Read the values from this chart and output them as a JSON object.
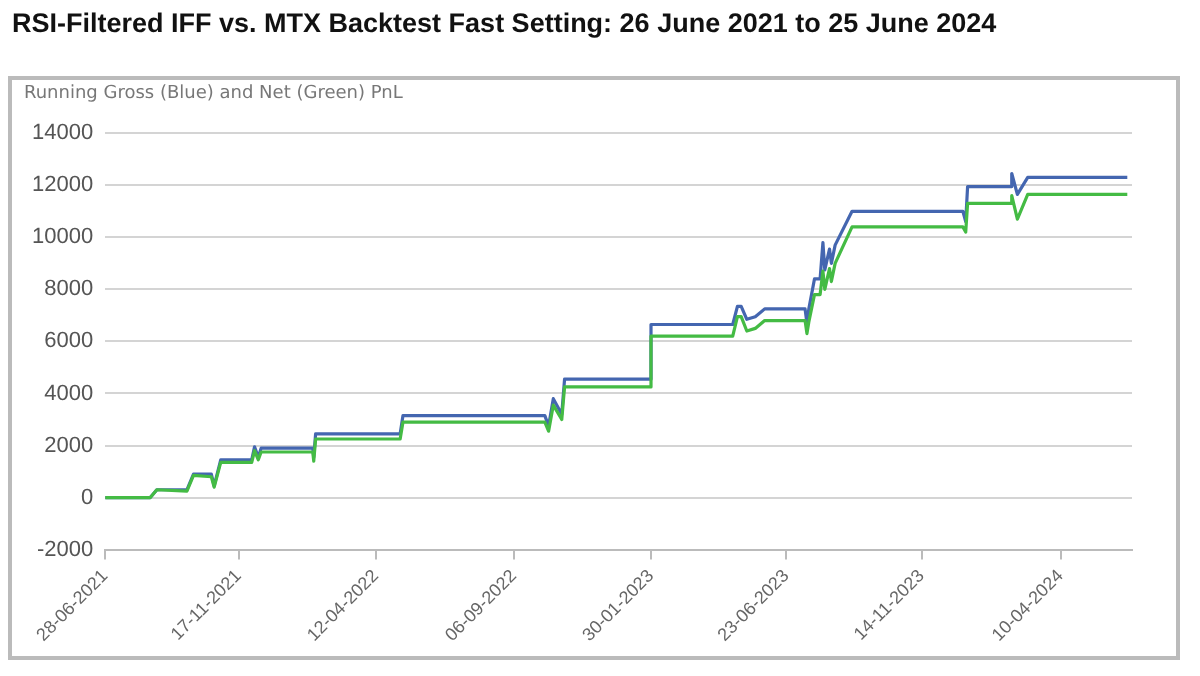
{
  "chart_data": {
    "type": "line",
    "title": "RSI-Filtered IFF vs. MTX Backtest Fast Setting: 26 June 2021 to 25 June 2024",
    "ylabel": "Running Gross (Blue) and Net (Green) PnL",
    "x": [
      "2021-06-28",
      "2021-08-15",
      "2021-08-22",
      "2021-09-23",
      "2021-09-30",
      "2021-10-19",
      "2021-10-22",
      "2021-10-29",
      "2021-12-01",
      "2021-12-04",
      "2021-12-08",
      "2021-12-11",
      "2022-02-04",
      "2022-02-05",
      "2022-02-07",
      "2022-05-08",
      "2022-05-11",
      "2022-10-09",
      "2022-10-13",
      "2022-10-18",
      "2022-10-27",
      "2022-10-30",
      "2023-01-29",
      "2023-01-30",
      "2023-04-27",
      "2023-05-02",
      "2023-05-06",
      "2023-05-12",
      "2023-05-21",
      "2023-05-31",
      "2023-07-13",
      "2023-07-15",
      "2023-07-17",
      "2023-07-23",
      "2023-07-29",
      "2023-08-01",
      "2023-08-03",
      "2023-08-08",
      "2023-08-10",
      "2023-08-14",
      "2023-09-01",
      "2023-12-28",
      "2023-12-31",
      "2024-01-02",
      "2024-02-17",
      "2024-02-18",
      "2024-02-24",
      "2024-03-06",
      "2024-06-20"
    ],
    "series": [
      {
        "color": "#4466b0",
        "values": [
          0,
          0,
          300,
          300,
          900,
          900,
          450,
          1450,
          1450,
          1950,
          1550,
          1900,
          1900,
          1550,
          2450,
          2450,
          3150,
          3150,
          2750,
          3800,
          3200,
          4550,
          4550,
          6650,
          6650,
          7350,
          7350,
          6850,
          6950,
          7250,
          7250,
          6700,
          7250,
          8400,
          8400,
          9800,
          8750,
          9550,
          9000,
          9700,
          11000,
          11000,
          10600,
          11950,
          11950,
          12450,
          11650,
          12300,
          12300
        ]
      },
      {
        "color": "#44bb44",
        "values": [
          0,
          0,
          300,
          250,
          850,
          800,
          400,
          1350,
          1350,
          1800,
          1450,
          1750,
          1750,
          1400,
          2250,
          2250,
          2900,
          2900,
          2550,
          3550,
          3000,
          4250,
          4250,
          6200,
          6200,
          6950,
          6950,
          6400,
          6500,
          6800,
          6800,
          6300,
          6750,
          7800,
          7800,
          8700,
          8000,
          8800,
          8300,
          9000,
          10400,
          10400,
          10200,
          11300,
          11300,
          11600,
          10700,
          11650,
          11650
        ]
      }
    ],
    "xlim": [
      "2021-06-28",
      "2024-06-25"
    ],
    "xticks": [
      {
        "value": "2021-06-28",
        "label": "28-06-2021"
      },
      {
        "value": "2021-11-17",
        "label": "17-11-2021"
      },
      {
        "value": "2022-04-12",
        "label": "12-04-2022"
      },
      {
        "value": "2022-09-06",
        "label": "06-09-2022"
      },
      {
        "value": "2023-01-30",
        "label": "30-01-2023"
      },
      {
        "value": "2023-06-23",
        "label": "23-06-2023"
      },
      {
        "value": "2023-11-14",
        "label": "14-11-2023"
      },
      {
        "value": "2024-04-10",
        "label": "10-04-2024"
      }
    ],
    "ylim": [
      -2000,
      14000
    ],
    "yticks": [
      -2000,
      0,
      2000,
      4000,
      6000,
      8000,
      10000,
      12000,
      14000
    ],
    "grid": "y",
    "legend": false,
    "marker": "none",
    "line_style": "solid"
  }
}
